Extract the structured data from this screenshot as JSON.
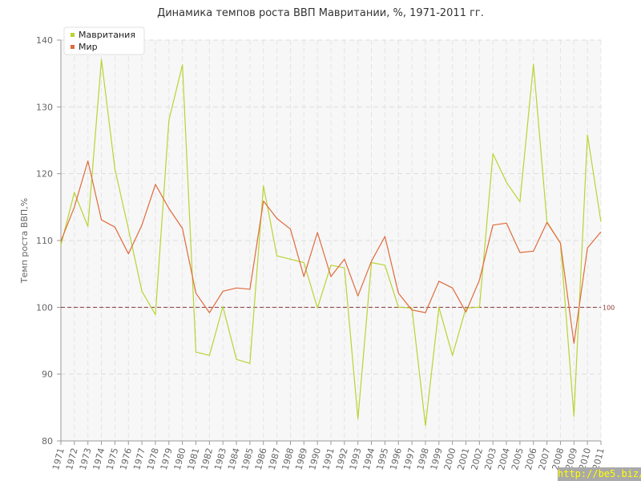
{
  "title": "Динамика темпов роста ВВП Мавритании, %, 1971-2011 гг.",
  "watermark": "http://be5.biz/",
  "chart_data": {
    "type": "line",
    "title": "Динамика темпов роста ВВП Мавритании, %, 1971-2011 гг.",
    "xlabel": "",
    "ylabel": "Темп роста ВВП,%",
    "categories": [
      "1971",
      "1972",
      "1973",
      "1974",
      "1975",
      "1976",
      "1977",
      "1978",
      "1979",
      "1980",
      "1981",
      "1982",
      "1983",
      "1984",
      "1985",
      "1986",
      "1987",
      "1988",
      "1989",
      "1990",
      "1991",
      "1992",
      "1993",
      "1994",
      "1995",
      "1996",
      "1997",
      "1998",
      "1999",
      "2000",
      "2001",
      "2002",
      "2003",
      "2004",
      "2005",
      "2006",
      "2007",
      "2008",
      "2009",
      "2010",
      "2011"
    ],
    "ylim": [
      80,
      140
    ],
    "yticks": [
      80,
      90,
      100,
      110,
      120,
      130,
      140
    ],
    "grid": true,
    "legend": "top-left",
    "reference_line": {
      "value": 100,
      "label": "100",
      "color": "#8b3a3a"
    },
    "series": [
      {
        "name": "Мавритания",
        "color": "#b8d432",
        "values": [
          109.3,
          117.2,
          112.1,
          137.1,
          120.7,
          111.7,
          102.4,
          98.9,
          128.0,
          136.3,
          93.3,
          92.8,
          100.1,
          92.2,
          91.6,
          118.2,
          107.7,
          107.2,
          106.7,
          99.9,
          106.3,
          105.9,
          83.3,
          106.7,
          106.3,
          100.0,
          99.9,
          82.3,
          100.0,
          92.8,
          99.9,
          100.0,
          123.0,
          118.7,
          115.8,
          136.4,
          112.8,
          109.6,
          83.7,
          125.8,
          112.8
        ]
      },
      {
        "name": "Мир",
        "color": "#e06a3c",
        "values": [
          109.9,
          115.0,
          121.9,
          113.1,
          112.0,
          108.0,
          112.3,
          118.4,
          114.8,
          111.8,
          102.1,
          99.2,
          102.4,
          102.9,
          102.7,
          115.9,
          113.3,
          111.7,
          104.6,
          111.2,
          104.6,
          107.2,
          101.7,
          106.9,
          110.6,
          102.1,
          99.6,
          99.2,
          103.9,
          102.9,
          99.3,
          104.1,
          112.3,
          112.6,
          108.2,
          108.4,
          112.7,
          109.6,
          94.6,
          108.9,
          111.3
        ]
      }
    ]
  }
}
